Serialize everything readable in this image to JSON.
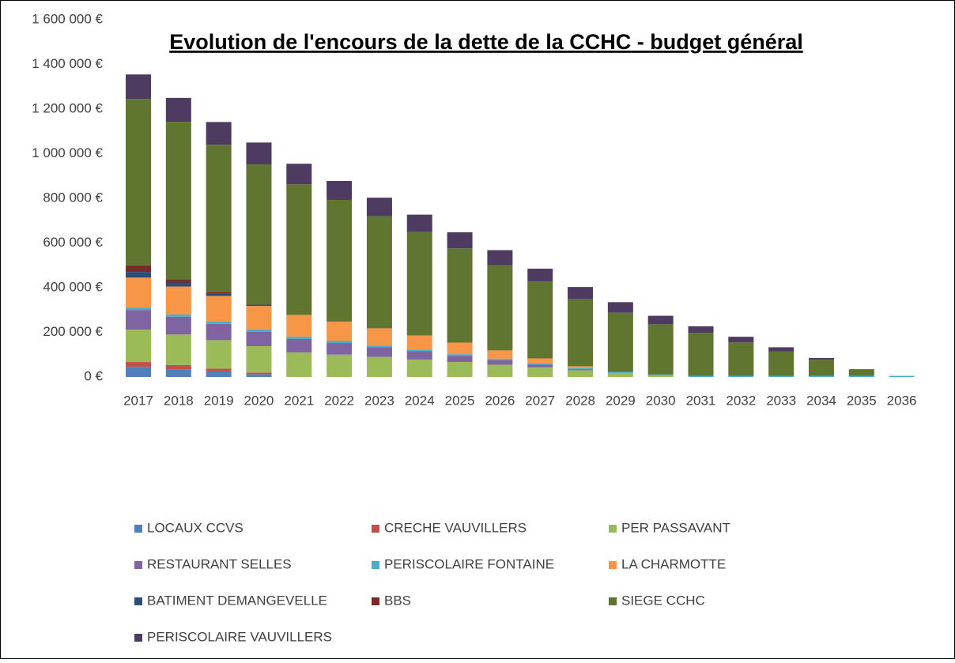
{
  "chart_data": {
    "type": "stacked_bar",
    "title": "Evolution de l'encours de la dette de la CCHC - budget général",
    "categories": [
      "2017",
      "2018",
      "2019",
      "2020",
      "2021",
      "2022",
      "2023",
      "2024",
      "2025",
      "2026",
      "2027",
      "2028",
      "2029",
      "2030",
      "2031",
      "2032",
      "2033",
      "2034",
      "2035",
      "2036"
    ],
    "series": [
      {
        "name": "LOCAUX CCVS",
        "color": "#4f81bd",
        "values": [
          45000,
          35000,
          25000,
          12000,
          0,
          0,
          0,
          0,
          0,
          0,
          0,
          0,
          0,
          0,
          0,
          0,
          0,
          0,
          0,
          0
        ]
      },
      {
        "name": "CRECHE VAUVILLERS",
        "color": "#c0504d",
        "values": [
          22000,
          18000,
          12000,
          8000,
          0,
          0,
          0,
          0,
          0,
          0,
          0,
          0,
          0,
          0,
          0,
          0,
          0,
          0,
          0,
          0
        ]
      },
      {
        "name": "PER PASSAVANT",
        "color": "#9bbb59",
        "values": [
          145000,
          137000,
          128000,
          118000,
          110000,
          100000,
          90000,
          78000,
          67000,
          55000,
          43000,
          30000,
          18000,
          6000,
          0,
          0,
          0,
          0,
          0,
          0
        ]
      },
      {
        "name": "RESTAURANT SELLES",
        "color": "#8064a2",
        "values": [
          88000,
          80000,
          73000,
          65000,
          60000,
          52000,
          43000,
          37000,
          28000,
          20000,
          12000,
          5000,
          0,
          0,
          0,
          0,
          0,
          0,
          0,
          0
        ]
      },
      {
        "name": "PERISCOLAIRE FONTAINE",
        "color": "#4bacc6",
        "values": [
          10000,
          10000,
          10000,
          10000,
          10000,
          9000,
          8000,
          8000,
          7000,
          7000,
          6000,
          5000,
          5000,
          5000,
          5000,
          5000,
          5000,
          5000,
          5000,
          5000
        ]
      },
      {
        "name": "LA CHARMOTTE",
        "color": "#f79646",
        "values": [
          135000,
          125000,
          115000,
          105000,
          98000,
          87000,
          77000,
          63000,
          52000,
          37000,
          22000,
          8000,
          0,
          0,
          0,
          0,
          0,
          0,
          0,
          0
        ]
      },
      {
        "name": "BATIMENT DEMANGEVELLE",
        "color": "#2c4d75",
        "values": [
          25000,
          18000,
          12000,
          6000,
          0,
          0,
          0,
          0,
          0,
          0,
          0,
          0,
          0,
          0,
          0,
          0,
          0,
          0,
          0,
          0
        ]
      },
      {
        "name": "BBS",
        "color": "#772c2a",
        "values": [
          30000,
          15000,
          5000,
          0,
          0,
          0,
          0,
          0,
          0,
          0,
          0,
          0,
          0,
          0,
          0,
          0,
          0,
          0,
          0,
          0
        ]
      },
      {
        "name": "SIEGE CCHC",
        "color": "#5f7530",
        "values": [
          745000,
          705000,
          660000,
          628000,
          585000,
          545000,
          502000,
          464000,
          422000,
          382000,
          345000,
          300000,
          265000,
          225000,
          192000,
          150000,
          110000,
          72000,
          30000,
          0
        ]
      },
      {
        "name": "PERISCOLAIRE VAUVILLERS",
        "color": "#4d3b62",
        "values": [
          110000,
          107000,
          102000,
          98000,
          92000,
          85000,
          83000,
          77000,
          72000,
          67000,
          57000,
          55000,
          47000,
          38000,
          30000,
          25000,
          18000,
          8000,
          0,
          0
        ]
      }
    ],
    "ylim": [
      0,
      1600000
    ],
    "yticks": [
      {
        "value": 0,
        "label": "0 €"
      },
      {
        "value": 200000,
        "label": "200 000 €"
      },
      {
        "value": 400000,
        "label": "400 000 €"
      },
      {
        "value": 600000,
        "label": "600 000 €"
      },
      {
        "value": 800000,
        "label": "800 000 €"
      },
      {
        "value": 1000000,
        "label": "1 000 000 €"
      },
      {
        "value": 1200000,
        "label": "1 200 000 €"
      },
      {
        "value": 1400000,
        "label": "1 400 000 €"
      },
      {
        "value": 1600000,
        "label": "1 600 000 €"
      }
    ],
    "grid": false,
    "legend": "bottom"
  }
}
